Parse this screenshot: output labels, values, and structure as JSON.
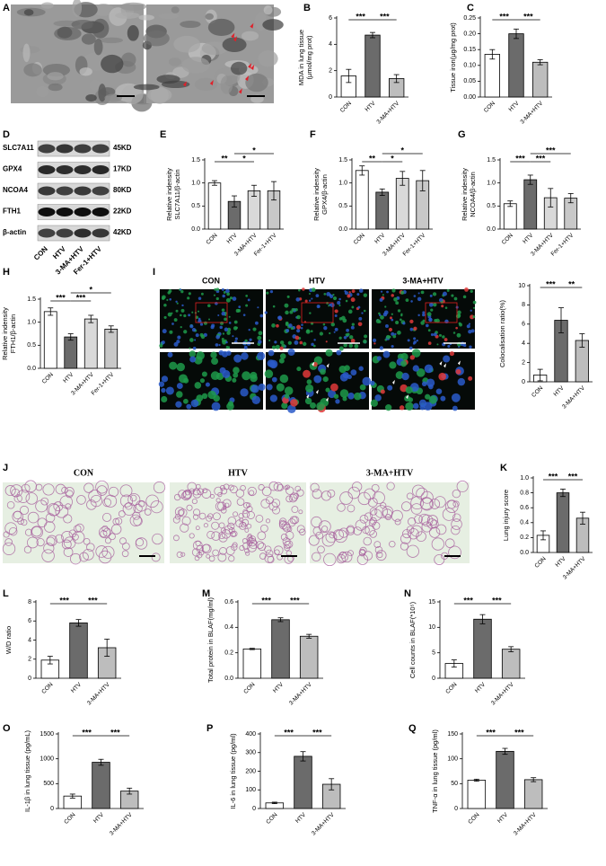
{
  "figure_panels": {
    "A": {
      "label": "A"
    },
    "D": {
      "label": "D",
      "proteins": [
        "SLC7A11",
        "GPX4",
        "NCOA4",
        "FTH1",
        "β-actin"
      ],
      "sizes": [
        "45KD",
        "17KD",
        "80KD",
        "22KD",
        "42KD"
      ],
      "groups": [
        "CON",
        "HTV",
        "3-MA+HTV",
        "Fer-1+HTV"
      ]
    },
    "I": {
      "label": "I",
      "groups": [
        "CON",
        "HTV",
        "3-MA+HTV"
      ]
    },
    "J": {
      "label": "J",
      "groups": [
        "CON",
        "HTV",
        "3-MA+HTV"
      ]
    }
  },
  "chart_data": [
    {
      "type": "bar",
      "panel": "B",
      "ylabel": [
        "MDA in lung tissue",
        "(μmol/mg prot)"
      ],
      "categories": [
        "CON",
        "HTV",
        "3-MA+HTV"
      ],
      "values": [
        1.6,
        4.7,
        1.4
      ],
      "errors": [
        0.5,
        0.2,
        0.3
      ],
      "colors": [
        "#ffffff",
        "#6b6b6b",
        "#bdbdbd"
      ],
      "ylim": [
        0,
        6
      ],
      "yticks": [
        0,
        2,
        4,
        6
      ],
      "comparisons": [
        {
          "pair": [
            "CON",
            "HTV"
          ],
          "label": "***"
        },
        {
          "pair": [
            "HTV",
            "3-MA+HTV"
          ],
          "label": "***"
        }
      ]
    },
    {
      "type": "bar",
      "panel": "C",
      "ylabel": [
        "Tissue iron(μg/mg prot)"
      ],
      "categories": [
        "CON",
        "HTV",
        "3-MA+HTV"
      ],
      "values": [
        0.135,
        0.2,
        0.11
      ],
      "errors": [
        0.015,
        0.015,
        0.008
      ],
      "colors": [
        "#ffffff",
        "#6b6b6b",
        "#bdbdbd"
      ],
      "ylim": [
        0,
        0.25
      ],
      "yticks": [
        {
          "value": 0,
          "label": "0.00"
        },
        0.05,
        {
          "value": 0.1,
          "label": "0.10"
        },
        0.15,
        {
          "value": 0.2,
          "label": "0.20"
        },
        0.25
      ],
      "comparisons": [
        {
          "pair": [
            "CON",
            "HTV"
          ],
          "label": "***"
        },
        {
          "pair": [
            "HTV",
            "3-MA+HTV"
          ],
          "label": "***"
        }
      ]
    },
    {
      "type": "bar",
      "panel": "E",
      "ylabel": [
        "Relative indensity",
        "SLC7A11/β-actin"
      ],
      "categories": [
        "CON",
        "HTV",
        "3-MA+HTV",
        "Fer-1+HTV"
      ],
      "values": [
        1.0,
        0.6,
        0.83,
        0.83
      ],
      "errors": [
        0.05,
        0.12,
        0.12,
        0.2
      ],
      "colors": [
        "#ffffff",
        "#6b6b6b",
        "#d9d9d9",
        "#c8c8c8"
      ],
      "ylim": [
        0,
        1.5
      ],
      "yticks": [
        {
          "value": 0,
          "label": "0.0"
        },
        0.5,
        {
          "value": 1,
          "label": "1.0"
        },
        1.5
      ],
      "comparisons": [
        {
          "pair": [
            "CON",
            "HTV"
          ],
          "label": "**"
        },
        {
          "pair": [
            "HTV",
            "3-MA+HTV"
          ],
          "label": "*"
        },
        {
          "pair": [
            "HTV",
            "Fer-1+HTV"
          ],
          "label": "*"
        }
      ]
    },
    {
      "type": "bar",
      "panel": "F",
      "ylabel": [
        "Relative indensity",
        "GPX4/β-actin"
      ],
      "categories": [
        "CON",
        "HTV",
        "3-MA+HTV",
        "Fer-1+HTV"
      ],
      "values": [
        1.27,
        0.8,
        1.1,
        1.05
      ],
      "errors": [
        0.1,
        0.07,
        0.15,
        0.22
      ],
      "colors": [
        "#ffffff",
        "#6b6b6b",
        "#d9d9d9",
        "#c8c8c8"
      ],
      "ylim": [
        0,
        1.5
      ],
      "yticks": [
        {
          "value": 0,
          "label": "0.0"
        },
        0.5,
        {
          "value": 1,
          "label": "1.0"
        },
        1.5
      ],
      "comparisons": [
        {
          "pair": [
            "CON",
            "HTV"
          ],
          "label": "**"
        },
        {
          "pair": [
            "HTV",
            "3-MA+HTV"
          ],
          "label": "*"
        },
        {
          "pair": [
            "HTV",
            "Fer-1+HTV"
          ],
          "label": "*"
        }
      ]
    },
    {
      "type": "bar",
      "panel": "G",
      "ylabel": [
        "Relative indensity",
        "NCOA4/β-actin"
      ],
      "categories": [
        "CON",
        "HTV",
        "3-MA+HTV",
        "Fer-1+HTV"
      ],
      "values": [
        0.55,
        1.07,
        0.68,
        0.67
      ],
      "errors": [
        0.06,
        0.1,
        0.2,
        0.1
      ],
      "colors": [
        "#ffffff",
        "#6b6b6b",
        "#d9d9d9",
        "#c8c8c8"
      ],
      "ylim": [
        0,
        1.5
      ],
      "yticks": [
        {
          "value": 0,
          "label": "0.0"
        },
        0.5,
        {
          "value": 1,
          "label": "1.0"
        },
        1.5
      ],
      "comparisons": [
        {
          "pair": [
            "CON",
            "HTV"
          ],
          "label": "***"
        },
        {
          "pair": [
            "HTV",
            "3-MA+HTV"
          ],
          "label": "***"
        },
        {
          "pair": [
            "HTV",
            "Fer-1+HTV"
          ],
          "label": "***"
        }
      ]
    },
    {
      "type": "bar",
      "panel": "H",
      "ylabel": [
        "Relative indensity",
        "FTH1/β-actin"
      ],
      "categories": [
        "CON",
        "HTV",
        "3-MA+HTV",
        "Fer-1+HTV"
      ],
      "values": [
        1.23,
        0.68,
        1.07,
        0.85
      ],
      "errors": [
        0.08,
        0.07,
        0.08,
        0.07
      ],
      "colors": [
        "#ffffff",
        "#6b6b6b",
        "#d9d9d9",
        "#c8c8c8"
      ],
      "ylim": [
        0,
        1.5
      ],
      "yticks": [
        {
          "value": 0,
          "label": "0.0"
        },
        0.5,
        {
          "value": 1,
          "label": "1.0"
        },
        1.5
      ],
      "comparisons": [
        {
          "pair": [
            "CON",
            "HTV"
          ],
          "label": "***"
        },
        {
          "pair": [
            "HTV",
            "3-MA+HTV"
          ],
          "label": "***"
        },
        {
          "pair": [
            "HTV",
            "Fer-1+HTV"
          ],
          "label": "*"
        }
      ]
    },
    {
      "type": "bar",
      "ylabel": [
        "Colocalisation ratio(%)"
      ],
      "categories": [
        "CON",
        "HTV",
        "3-MA+HTV"
      ],
      "values": [
        0.7,
        6.4,
        4.3
      ],
      "errors": [
        0.6,
        1.3,
        0.7
      ],
      "colors": [
        "#ffffff",
        "#6b6b6b",
        "#bdbdbd"
      ],
      "ylim": [
        0,
        10
      ],
      "yticks": [
        0,
        2,
        4,
        6,
        8,
        10
      ],
      "comparisons": [
        {
          "pair": [
            "CON",
            "HTV"
          ],
          "label": "***"
        },
        {
          "pair": [
            "HTV",
            "3-MA+HTV"
          ],
          "label": "**"
        }
      ]
    },
    {
      "type": "bar",
      "panel": "K",
      "ylabel": [
        "Lung injury score"
      ],
      "categories": [
        "CON",
        "HTV",
        "3-MA+HTV"
      ],
      "values": [
        0.23,
        0.8,
        0.46
      ],
      "errors": [
        0.06,
        0.05,
        0.08
      ],
      "colors": [
        "#ffffff",
        "#6b6b6b",
        "#bdbdbd"
      ],
      "ylim": [
        0,
        1
      ],
      "yticks": [
        {
          "value": 0,
          "label": "0.0"
        },
        0.2,
        0.4,
        0.6,
        0.8,
        {
          "value": 1,
          "label": "1.0"
        }
      ],
      "comparisons": [
        {
          "pair": [
            "CON",
            "HTV"
          ],
          "label": "***"
        },
        {
          "pair": [
            "HTV",
            "3-MA+HTV"
          ],
          "label": "***"
        }
      ]
    },
    {
      "type": "bar",
      "panel": "L",
      "ylabel": [
        "W/D ratio"
      ],
      "categories": [
        "CON",
        "HTV",
        "3-MA+HTV"
      ],
      "values": [
        1.9,
        5.8,
        3.2
      ],
      "errors": [
        0.4,
        0.35,
        0.9
      ],
      "colors": [
        "#ffffff",
        "#6b6b6b",
        "#bdbdbd"
      ],
      "ylim": [
        0,
        8
      ],
      "yticks": [
        0,
        2,
        4,
        6,
        8
      ],
      "comparisons": [
        {
          "pair": [
            "CON",
            "HTV"
          ],
          "label": "***"
        },
        {
          "pair": [
            "HTV",
            "3-MA+HTV"
          ],
          "label": "***"
        }
      ]
    },
    {
      "type": "bar",
      "panel": "M",
      "ylabel": [
        "Total protein in BLAF(mg/ml)"
      ],
      "categories": [
        "CON",
        "HTV",
        "3-MA+HTV"
      ],
      "values": [
        0.23,
        0.46,
        0.33
      ],
      "errors": [
        0.005,
        0.015,
        0.015
      ],
      "colors": [
        "#ffffff",
        "#6b6b6b",
        "#bdbdbd"
      ],
      "ylim": [
        0,
        0.6
      ],
      "yticks": [
        {
          "value": 0,
          "label": "0.0"
        },
        0.2,
        0.4,
        0.6
      ],
      "comparisons": [
        {
          "pair": [
            "CON",
            "HTV"
          ],
          "label": "***"
        },
        {
          "pair": [
            "HTV",
            "3-MA+HTV"
          ],
          "label": "***"
        }
      ]
    },
    {
      "type": "bar",
      "panel": "N",
      "ylabel": [
        "Cell counts in BLAF(*10⁵)"
      ],
      "categories": [
        "CON",
        "HTV",
        "3-MA+HTV"
      ],
      "values": [
        2.9,
        11.6,
        5.7
      ],
      "errors": [
        0.7,
        0.9,
        0.5
      ],
      "colors": [
        "#ffffff",
        "#6b6b6b",
        "#bdbdbd"
      ],
      "ylim": [
        0,
        15
      ],
      "yticks": [
        0,
        5,
        10,
        15
      ],
      "comparisons": [
        {
          "pair": [
            "CON",
            "HTV"
          ],
          "label": "***"
        },
        {
          "pair": [
            "HTV",
            "3-MA+HTV"
          ],
          "label": "***"
        }
      ]
    },
    {
      "type": "bar",
      "panel": "O",
      "ylabel": [
        "IL-1β in lung tissue  (pg/mL)"
      ],
      "categories": [
        "CON",
        "HTV",
        "3-MA+HTV"
      ],
      "values": [
        250,
        930,
        350
      ],
      "errors": [
        40,
        60,
        60
      ],
      "colors": [
        "#ffffff",
        "#6b6b6b",
        "#bdbdbd"
      ],
      "ylim": [
        0,
        1500
      ],
      "yticks": [
        0,
        500,
        1000,
        1500
      ],
      "comparisons": [
        {
          "pair": [
            "CON",
            "HTV"
          ],
          "label": "***"
        },
        {
          "pair": [
            "HTV",
            "3-MA+HTV"
          ],
          "label": "***"
        }
      ]
    },
    {
      "type": "bar",
      "panel": "P",
      "ylabel": [
        "IL-6 in lung tissue  (pg/ml)"
      ],
      "categories": [
        "CON",
        "HTV",
        "3-MA+HTV"
      ],
      "values": [
        30,
        280,
        130
      ],
      "errors": [
        4,
        25,
        30
      ],
      "colors": [
        "#ffffff",
        "#6b6b6b",
        "#bdbdbd"
      ],
      "ylim": [
        0,
        400
      ],
      "yticks": [
        0,
        100,
        200,
        300,
        400
      ],
      "comparisons": [
        {
          "pair": [
            "CON",
            "HTV"
          ],
          "label": "***"
        },
        {
          "pair": [
            "HTV",
            "3-MA+HTV"
          ],
          "label": "***"
        }
      ]
    },
    {
      "type": "bar",
      "panel": "Q",
      "ylabel": [
        "TNF-α in lung tissue  (pg/ml)"
      ],
      "categories": [
        "CON",
        "HTV",
        "3-MA+HTV"
      ],
      "values": [
        57,
        115,
        58
      ],
      "errors": [
        2,
        6,
        4
      ],
      "colors": [
        "#ffffff",
        "#6b6b6b",
        "#bdbdbd"
      ],
      "ylim": [
        0,
        150
      ],
      "yticks": [
        0,
        50,
        100,
        150
      ],
      "comparisons": [
        {
          "pair": [
            "CON",
            "HTV"
          ],
          "label": "***"
        },
        {
          "pair": [
            "HTV",
            "3-MA+HTV"
          ],
          "label": "***"
        }
      ]
    }
  ]
}
